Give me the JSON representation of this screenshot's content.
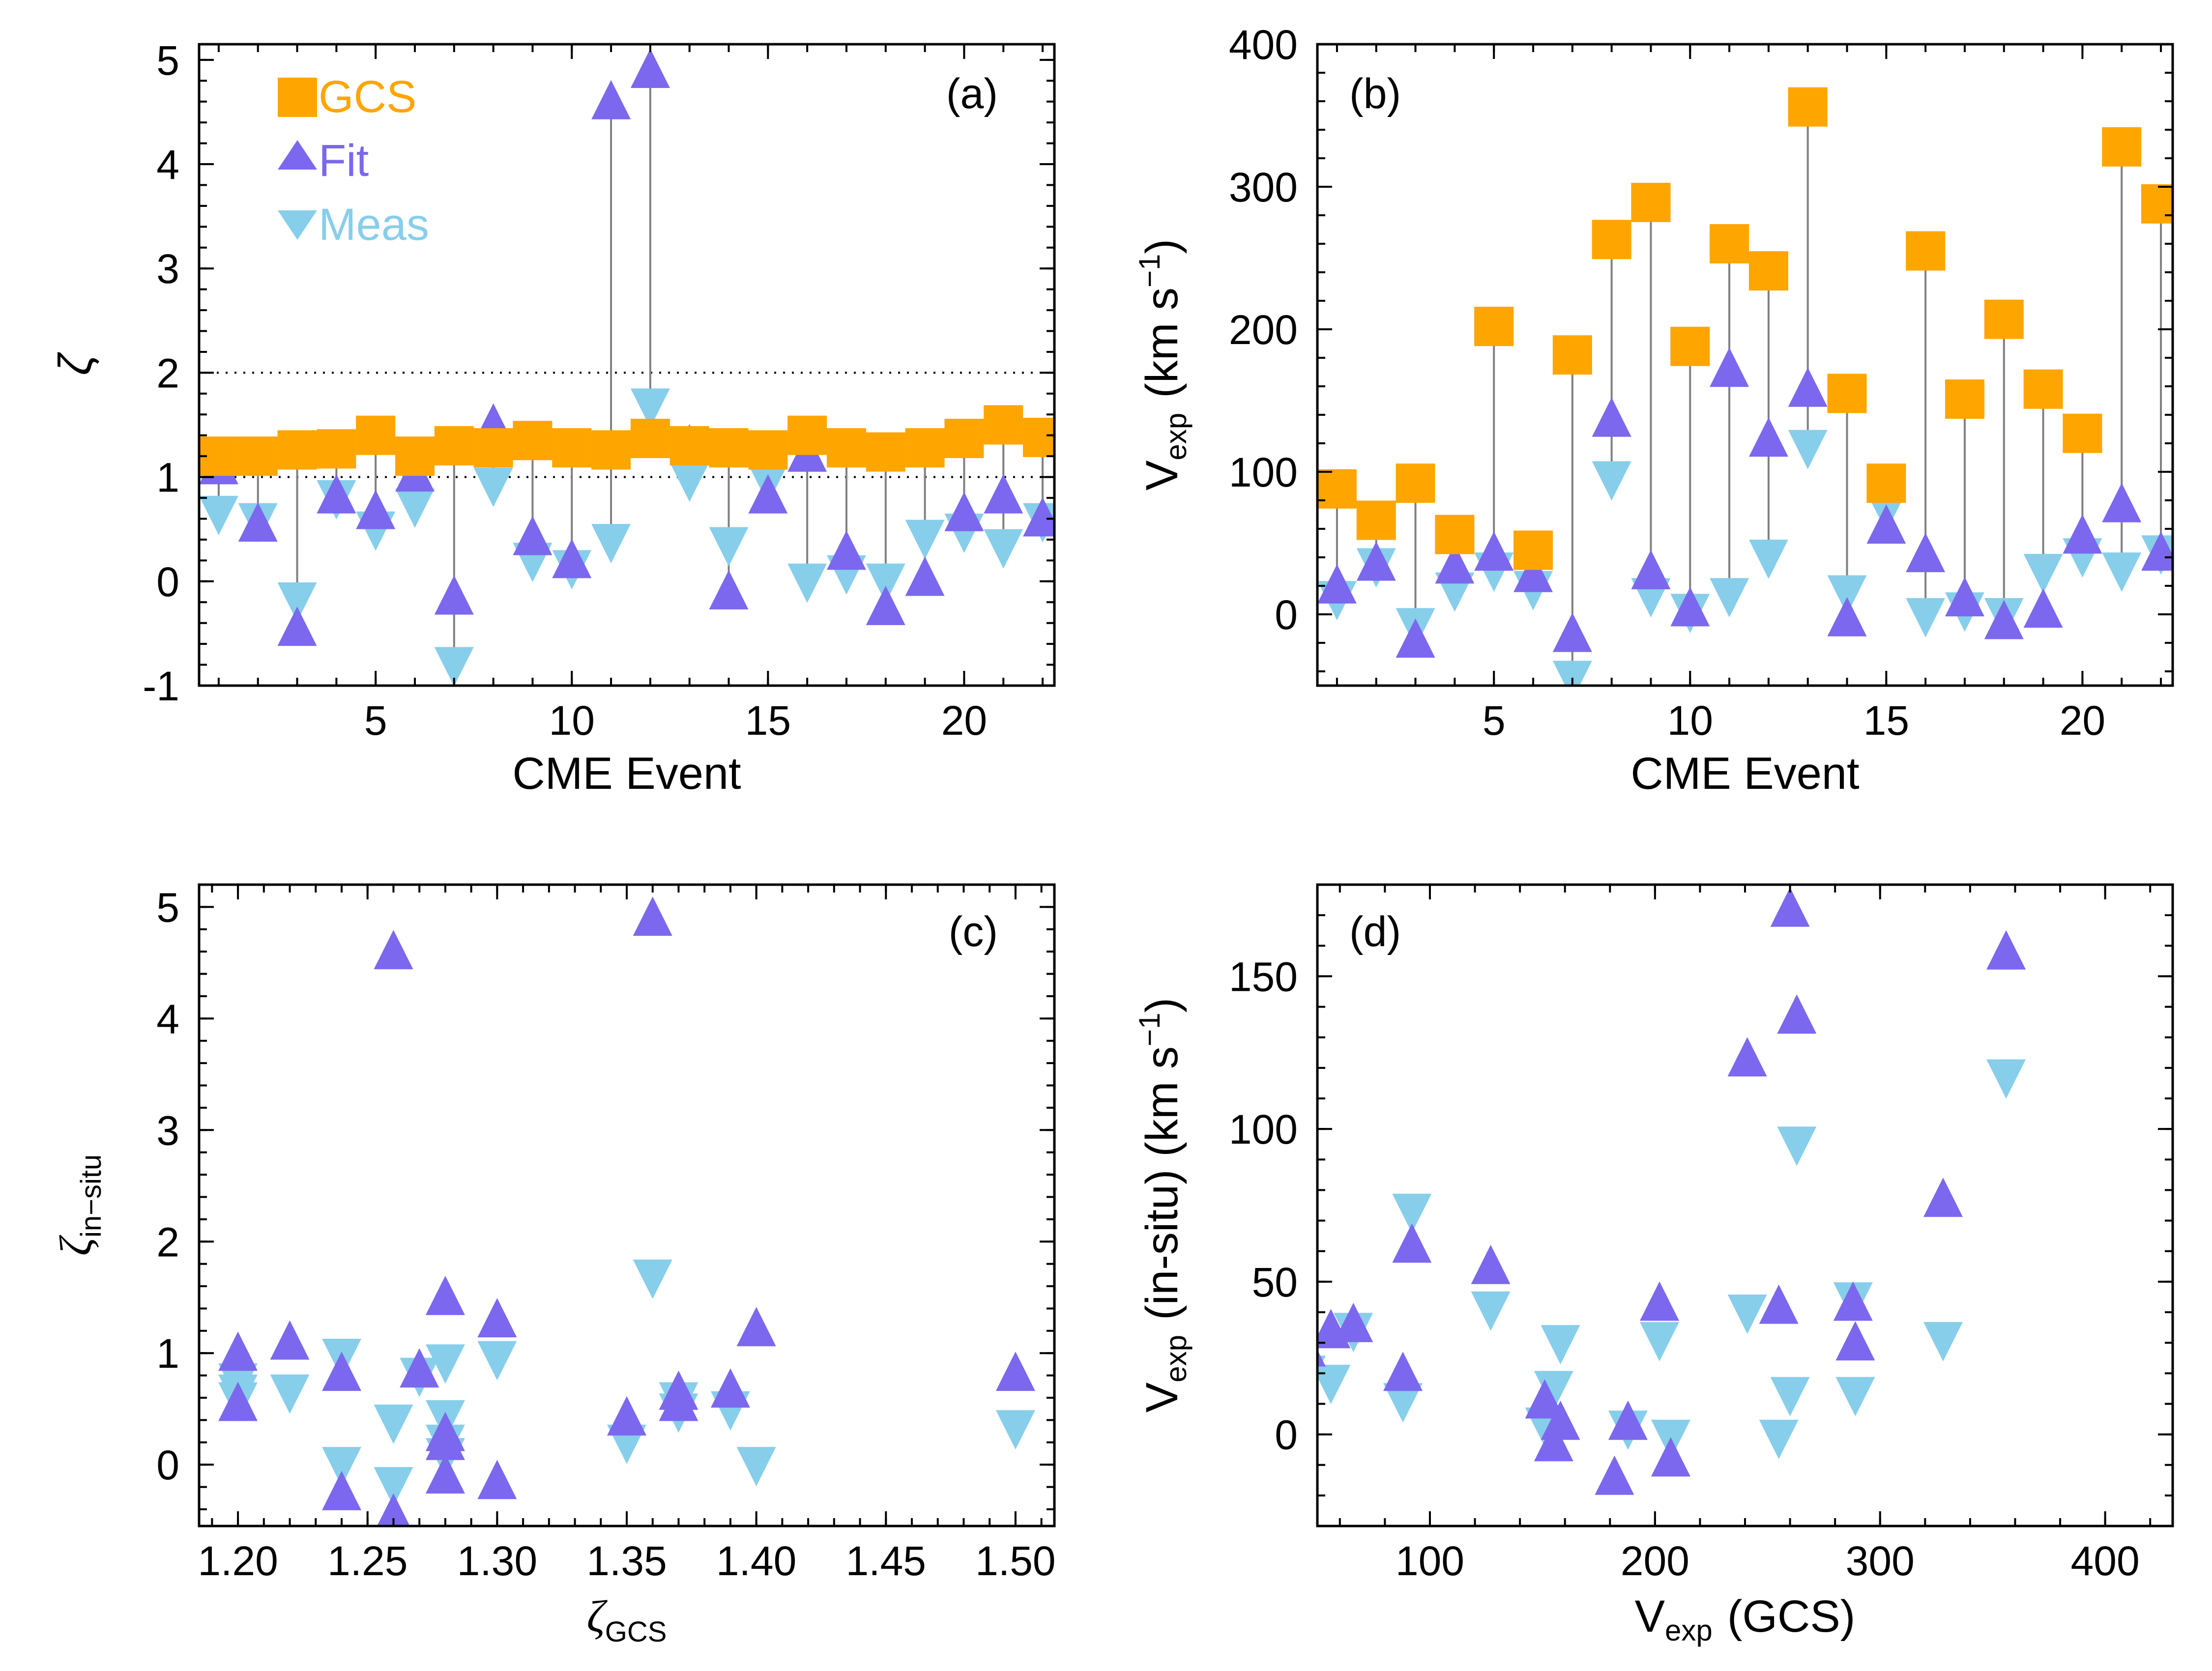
{
  "colors": {
    "gcs": "#FFA500",
    "fit": "#7B68EE",
    "meas": "#87CEEB",
    "connector": "#808080",
    "axis": "#000000"
  },
  "legend": [
    {
      "label": "GCS",
      "marker": "square",
      "color": "#FFA500"
    },
    {
      "label": "Fit",
      "marker": "triangle-up",
      "color": "#7B68EE"
    },
    {
      "label": "Meas",
      "marker": "triangle-down",
      "color": "#87CEEB"
    }
  ],
  "chart_data": [
    {
      "type": "scatter",
      "panel_label": "(a)",
      "xlabel": "CME Event",
      "ylabel": "ζ",
      "ylabel_sub": "",
      "ylabel_suffix": "",
      "xlim": [
        0.5,
        22.3
      ],
      "ylim": [
        -1,
        5.15
      ],
      "xticks": [
        5,
        10,
        15,
        20
      ],
      "xtick_labels": [
        "5",
        "10",
        "15",
        "20"
      ],
      "yticks": [
        -1,
        0,
        1,
        2,
        3,
        4,
        5
      ],
      "ytick_labels": [
        "-1",
        "0",
        "1",
        "2",
        "3",
        "4",
        "5"
      ],
      "reference_lines": [
        1,
        2
      ],
      "x": [
        1,
        2,
        3,
        4,
        5,
        6,
        7,
        8,
        9,
        10,
        11,
        12,
        13,
        14,
        15,
        16,
        17,
        18,
        19,
        20,
        21,
        22
      ],
      "series": [
        {
          "name": "GCS",
          "marker": "square",
          "values": [
            1.2,
            1.2,
            1.26,
            1.27,
            1.4,
            1.2,
            1.3,
            1.28,
            1.35,
            1.28,
            1.26,
            1.37,
            1.3,
            1.28,
            1.26,
            1.4,
            1.28,
            1.24,
            1.28,
            1.37,
            1.5,
            1.38
          ]
        },
        {
          "name": "Fit",
          "marker": "triangle-up",
          "values": [
            1.1,
            0.55,
            -0.45,
            0.82,
            0.67,
            1.03,
            -0.15,
            1.5,
            0.42,
            0.2,
            4.6,
            4.9,
            1.3,
            -0.1,
            0.82,
            1.22,
            0.28,
            -0.25,
            0.03,
            0.65,
            0.82,
            0.6
          ]
        },
        {
          "name": "Meas",
          "marker": "triangle-down",
          "values": [
            0.65,
            0.58,
            -0.18,
            0.8,
            0.5,
            0.72,
            -0.8,
            0.92,
            0.2,
            0.13,
            0.38,
            1.68,
            0.97,
            0.35,
            0.95,
            0.0,
            0.08,
            0.0,
            0.42,
            0.48,
            0.33,
            0.58
          ]
        }
      ],
      "connectors": true
    },
    {
      "type": "scatter",
      "panel_label": "(b)",
      "xlabel": "CME Event",
      "ylabel": "V",
      "ylabel_sub": "exp",
      "ylabel_suffix": "(km s",
      "ylabel_sup": "−1",
      "ylabel_close": ")",
      "xlim": [
        0.5,
        22.3
      ],
      "ylim": [
        -50,
        400
      ],
      "xticks": [
        5,
        10,
        15,
        20
      ],
      "xtick_labels": [
        "5",
        "10",
        "15",
        "20"
      ],
      "yticks": [
        0,
        100,
        200,
        300,
        400
      ],
      "ytick_labels": [
        "0",
        "100",
        "200",
        "300",
        "400"
      ],
      "x": [
        1,
        2,
        3,
        4,
        5,
        6,
        7,
        8,
        9,
        10,
        11,
        12,
        13,
        14,
        15,
        16,
        17,
        18,
        19,
        20,
        21,
        22
      ],
      "series": [
        {
          "name": "GCS",
          "marker": "square",
          "values": [
            88,
            66,
            92,
            56,
            202,
            45,
            182,
            263,
            289,
            188,
            260,
            241,
            356,
            155,
            92,
            255,
            151,
            207,
            158,
            127,
            328,
            288
          ]
        },
        {
          "name": "Fit",
          "marker": "triangle-up",
          "values": [
            20,
            36,
            -18,
            34,
            43,
            28,
            -14,
            137,
            30,
            4,
            172,
            123,
            158,
            -3,
            62,
            42,
            11,
            -5,
            3,
            55,
            77,
            43
          ]
        },
        {
          "name": "Meas",
          "marker": "triangle-down",
          "values": [
            11,
            34,
            -8,
            17,
            31,
            18,
            -45,
            95,
            13,
            2,
            13,
            40,
            117,
            15,
            73,
            -1,
            3,
            -1,
            30,
            41,
            31,
            43
          ]
        }
      ],
      "connectors": true
    },
    {
      "type": "scatter",
      "panel_label": "(c)",
      "xlabel": "ζ",
      "xlabel_sub": "GCS",
      "ylabel": "ζ",
      "ylabel_sub": "in−situ",
      "ylabel_suffix": "",
      "xlim": [
        1.185,
        1.515
      ],
      "ylim": [
        -0.55,
        5.2
      ],
      "xticks": [
        1.2,
        1.25,
        1.3,
        1.35,
        1.4,
        1.45,
        1.5
      ],
      "xtick_labels": [
        "1.20",
        "1.25",
        "1.30",
        "1.35",
        "1.40",
        "1.45",
        "1.50"
      ],
      "yticks": [
        0,
        1,
        2,
        3,
        4,
        5
      ],
      "ytick_labels": [
        "0",
        "1",
        "2",
        "3",
        "4",
        "5"
      ],
      "series": [
        {
          "name": "Fit",
          "marker": "triangle-up",
          "x": [
            1.2,
            1.2,
            1.22,
            1.24,
            1.24,
            1.26,
            1.26,
            1.27,
            1.28,
            1.28,
            1.28,
            1.28,
            1.3,
            1.3,
            1.35,
            1.36,
            1.37,
            1.37,
            1.39,
            1.4,
            1.5
          ],
          "y": [
            1.0,
            0.55,
            1.1,
            0.82,
            -0.25,
            4.6,
            -0.45,
            0.85,
            1.5,
            0.28,
            0.2,
            -0.1,
            1.3,
            -0.15,
            0.42,
            4.9,
            0.65,
            0.55,
            0.67,
            1.22,
            0.82
          ]
        },
        {
          "name": "Meas",
          "marker": "triangle-down",
          "x": [
            1.2,
            1.2,
            1.2,
            1.22,
            1.24,
            1.24,
            1.26,
            1.26,
            1.27,
            1.28,
            1.28,
            1.28,
            1.28,
            1.3,
            1.35,
            1.36,
            1.37,
            1.37,
            1.39,
            1.4,
            1.5
          ],
          "y": [
            0.75,
            0.65,
            0.58,
            0.65,
            0.97,
            0.0,
            0.38,
            -0.18,
            0.8,
            0.92,
            0.42,
            0.2,
            0.08,
            0.95,
            0.2,
            1.68,
            0.58,
            0.48,
            0.5,
            0.0,
            0.33
          ]
        }
      ],
      "connectors": false
    },
    {
      "type": "scatter",
      "panel_label": "(d)",
      "xlabel": "V",
      "xlabel_sub": "exp",
      "xlabel_suffix": "(GCS)",
      "ylabel": "V",
      "ylabel_sub": "exp",
      "ylabel_suffix": "(in-situ) (km s",
      "ylabel_sup": "−1",
      "ylabel_close": ")",
      "xlim": [
        50,
        430
      ],
      "ylim": [
        -30,
        180
      ],
      "xticks": [
        100,
        200,
        300,
        400
      ],
      "xtick_labels": [
        "100",
        "200",
        "300",
        "400"
      ],
      "yticks": [
        0,
        50,
        100,
        150
      ],
      "ytick_labels": [
        "0",
        "50",
        "100",
        "150"
      ],
      "series": [
        {
          "name": "Fit",
          "marker": "triangle-up",
          "x": [
            56,
            66,
            88,
            92,
            45,
            151,
            155,
            158,
            188,
            182,
            202,
            207,
            241,
            255,
            260,
            263,
            288,
            289,
            127,
            328,
            356
          ],
          "y": [
            34,
            36,
            20,
            62,
            28,
            11,
            -3,
            4,
            4,
            -14,
            43,
            -8,
            123,
            42,
            172,
            137,
            43,
            30,
            55,
            77,
            158
          ]
        },
        {
          "name": "Meas",
          "marker": "triangle-down",
          "x": [
            56,
            66,
            88,
            92,
            45,
            151,
            155,
            158,
            188,
            202,
            207,
            241,
            255,
            260,
            263,
            288,
            289,
            127,
            328,
            356
          ],
          "y": [
            17,
            34,
            11,
            73,
            20,
            3,
            15,
            30,
            2,
            31,
            -1,
            40,
            -1,
            13,
            95,
            44,
            13,
            41,
            31,
            117
          ]
        }
      ],
      "connectors": false
    }
  ]
}
